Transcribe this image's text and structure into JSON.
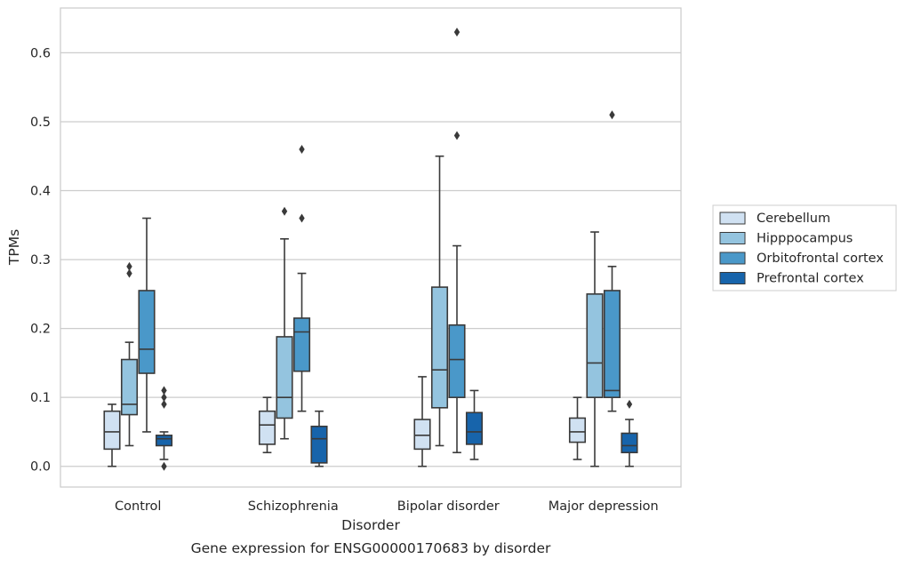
{
  "chart_data": {
    "type": "box",
    "caption": "Gene expression for ENSG00000170683 by disorder",
    "xlabel": "Disorder",
    "ylabel": "TPMs",
    "ylim": [
      -0.03,
      0.665
    ],
    "yticks": [
      0.0,
      0.1,
      0.2,
      0.3,
      0.4,
      0.5,
      0.6
    ],
    "ytick_labels": [
      "0.0",
      "0.1",
      "0.2",
      "0.3",
      "0.4",
      "0.5",
      "0.6"
    ],
    "grid": "horizontal",
    "legend_position": "right",
    "categories": [
      "Control",
      "Schizophrenia",
      "Bipolar disorder",
      "Major depression"
    ],
    "series": [
      {
        "name": "Cerebellum",
        "color": "#d0e1f2",
        "boxes": [
          {
            "whislo": 0.0,
            "q1": 0.025,
            "med": 0.05,
            "q3": 0.08,
            "whishi": 0.09,
            "fliers": []
          },
          {
            "whislo": 0.02,
            "q1": 0.032,
            "med": 0.06,
            "q3": 0.08,
            "whishi": 0.1,
            "fliers": []
          },
          {
            "whislo": 0.0,
            "q1": 0.025,
            "med": 0.045,
            "q3": 0.068,
            "whishi": 0.13,
            "fliers": []
          },
          {
            "whislo": 0.01,
            "q1": 0.035,
            "med": 0.05,
            "q3": 0.07,
            "whishi": 0.1,
            "fliers": []
          }
        ]
      },
      {
        "name": "Hipppocampus",
        "color": "#94c4df",
        "boxes": [
          {
            "whislo": 0.03,
            "q1": 0.075,
            "med": 0.09,
            "q3": 0.155,
            "whishi": 0.18,
            "fliers": [
              0.28,
              0.29
            ]
          },
          {
            "whislo": 0.04,
            "q1": 0.07,
            "med": 0.1,
            "q3": 0.188,
            "whishi": 0.33,
            "fliers": [
              0.37
            ]
          },
          {
            "whislo": 0.03,
            "q1": 0.085,
            "med": 0.14,
            "q3": 0.26,
            "whishi": 0.45,
            "fliers": []
          },
          {
            "whislo": 0.0,
            "q1": 0.1,
            "med": 0.15,
            "q3": 0.25,
            "whishi": 0.34,
            "fliers": []
          }
        ]
      },
      {
        "name": "Orbitofrontal cortex",
        "color": "#4a98c9",
        "boxes": [
          {
            "whislo": 0.05,
            "q1": 0.135,
            "med": 0.17,
            "q3": 0.255,
            "whishi": 0.36,
            "fliers": []
          },
          {
            "whislo": 0.08,
            "q1": 0.138,
            "med": 0.195,
            "q3": 0.215,
            "whishi": 0.28,
            "fliers": [
              0.36,
              0.46
            ]
          },
          {
            "whislo": 0.02,
            "q1": 0.1,
            "med": 0.155,
            "q3": 0.205,
            "whishi": 0.32,
            "fliers": [
              0.48,
              0.63
            ]
          },
          {
            "whislo": 0.08,
            "q1": 0.1,
            "med": 0.11,
            "q3": 0.255,
            "whishi": 0.29,
            "fliers": [
              0.51
            ]
          }
        ]
      },
      {
        "name": "Prefrontal cortex",
        "color": "#1764ab",
        "boxes": [
          {
            "whislo": 0.01,
            "q1": 0.03,
            "med": 0.04,
            "q3": 0.045,
            "whishi": 0.05,
            "fliers": [
              0.0,
              0.09,
              0.1,
              0.11
            ]
          },
          {
            "whislo": 0.0,
            "q1": 0.005,
            "med": 0.04,
            "q3": 0.058,
            "whishi": 0.08,
            "fliers": []
          },
          {
            "whislo": 0.01,
            "q1": 0.032,
            "med": 0.05,
            "q3": 0.078,
            "whishi": 0.11,
            "fliers": []
          },
          {
            "whislo": 0.0,
            "q1": 0.02,
            "med": 0.03,
            "q3": 0.048,
            "whishi": 0.068,
            "fliers": [
              0.09
            ]
          }
        ]
      }
    ]
  }
}
